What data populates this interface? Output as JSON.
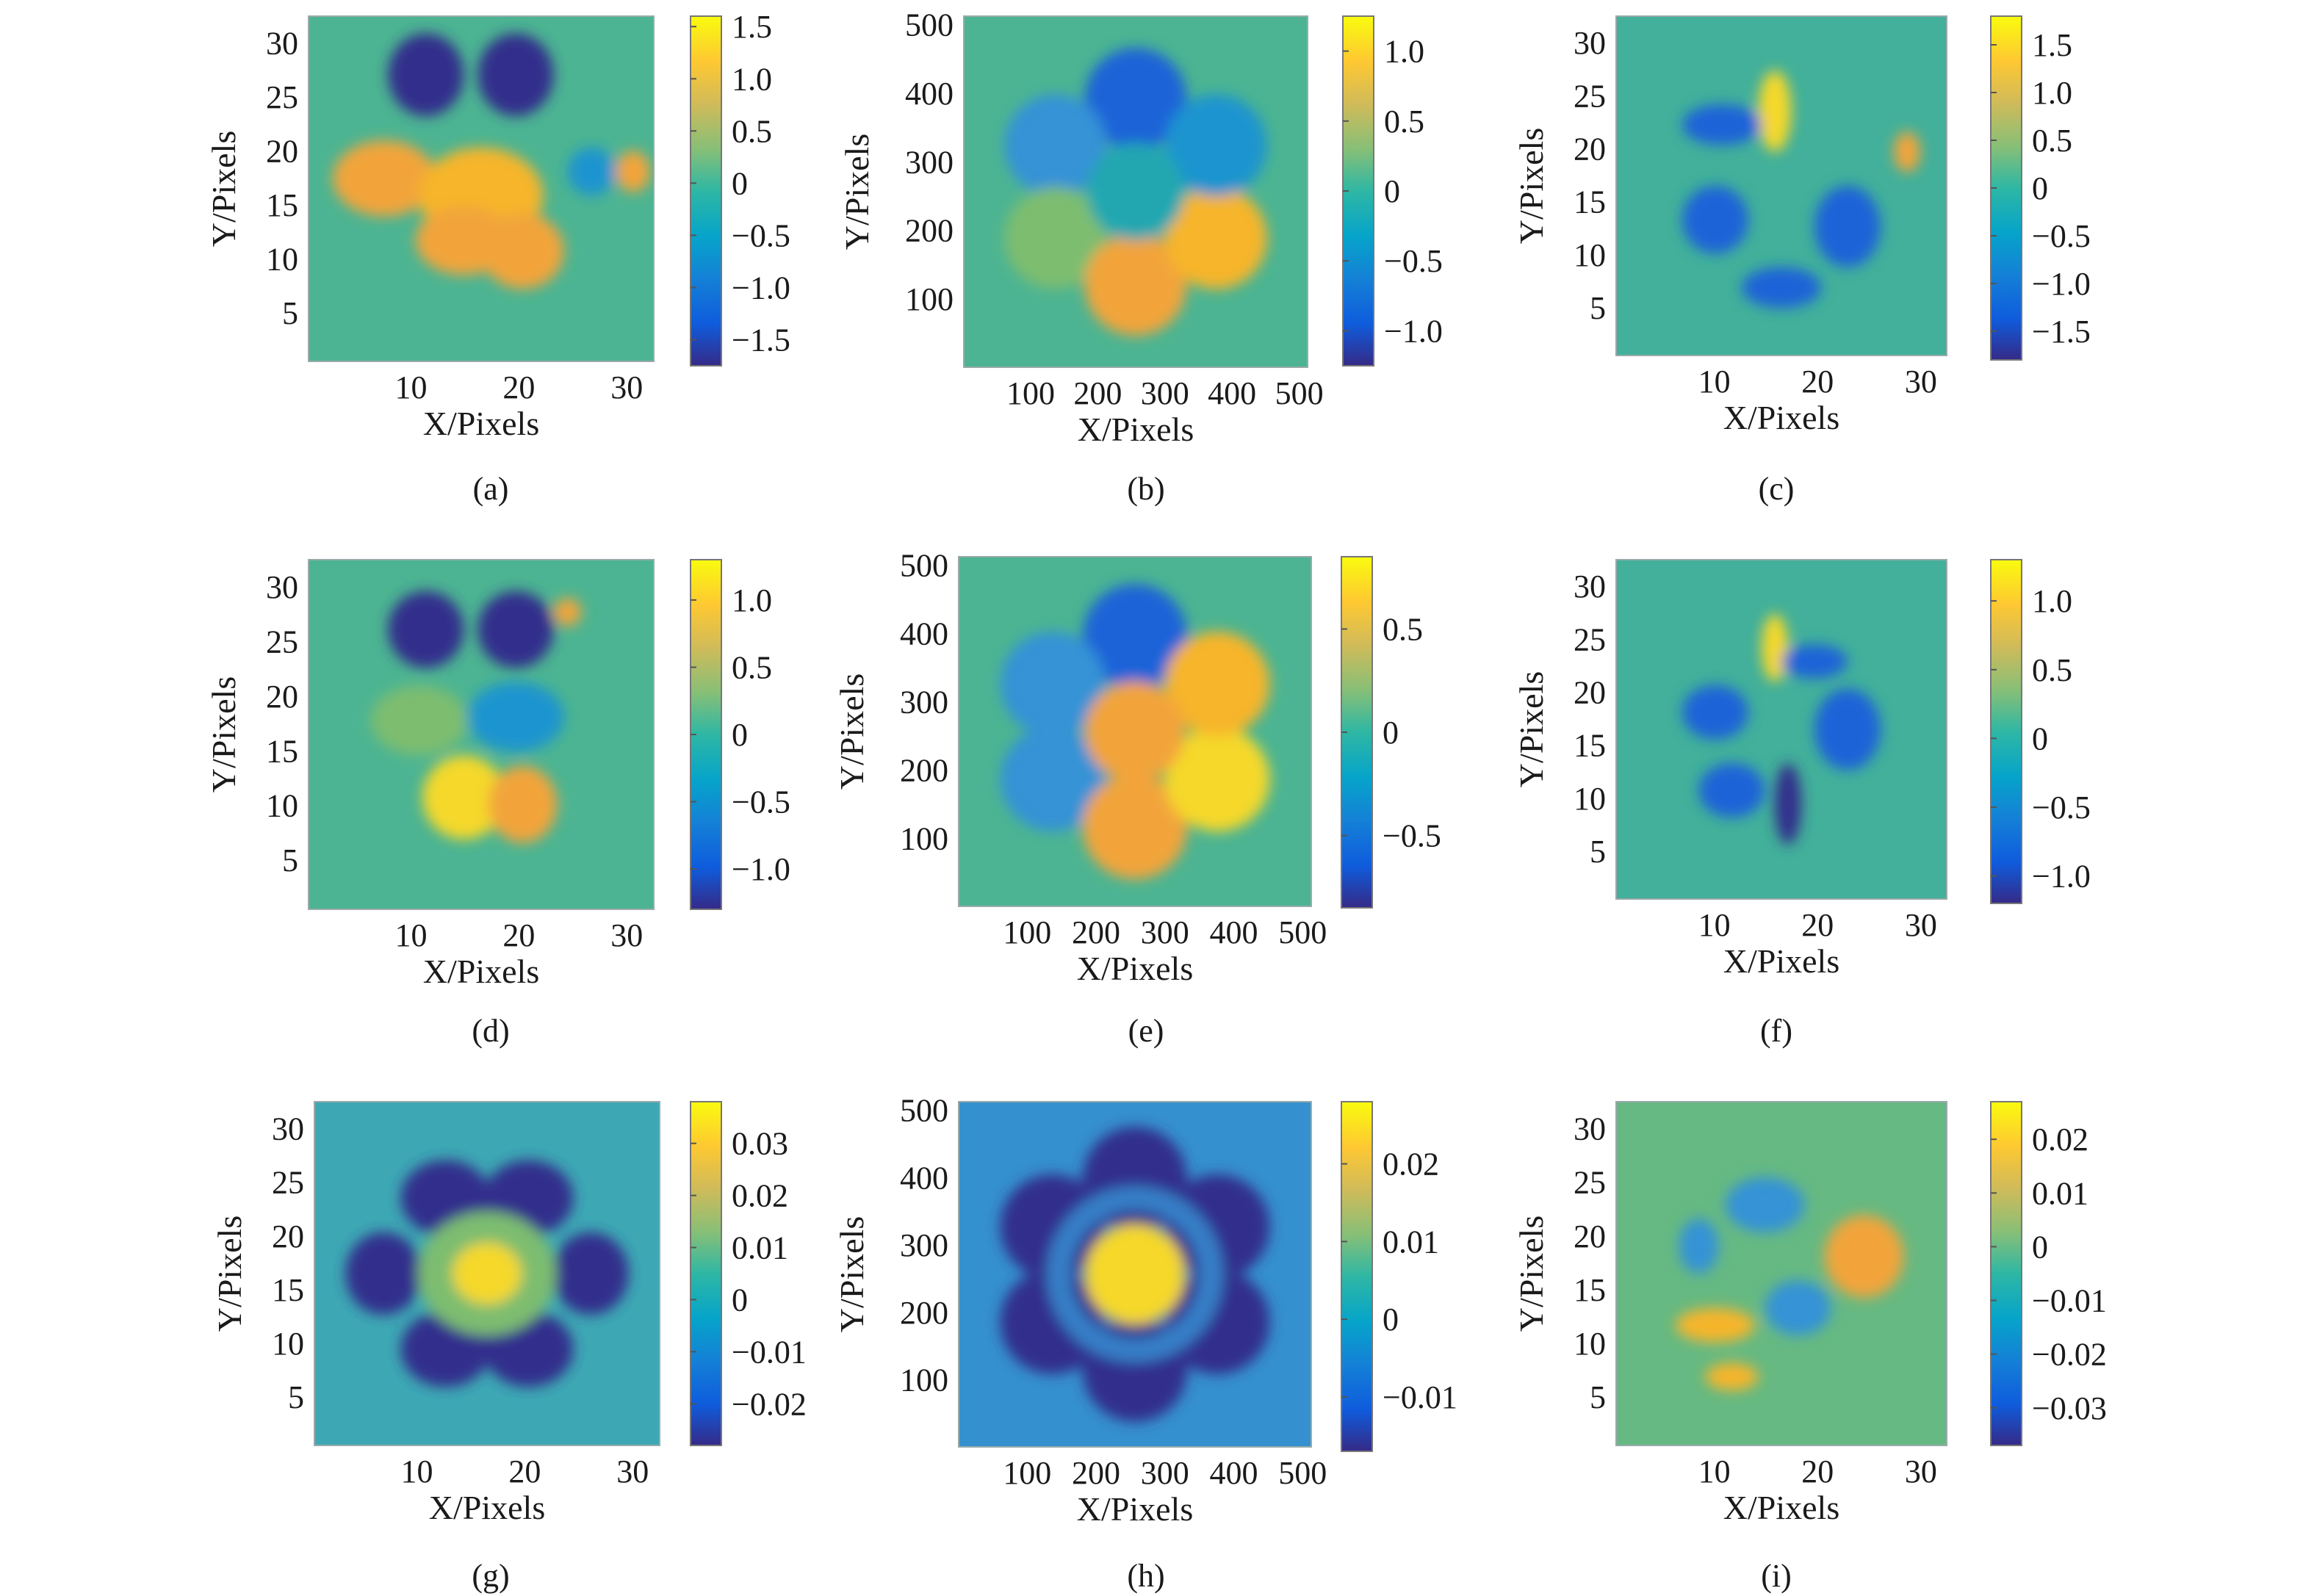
{
  "figure": {
    "panels": [
      {
        "caption": "(a)",
        "image_size": 32,
        "xlabel": "X/Pixels",
        "ylabel": "Y/Pixels",
        "x_ticks": [
          "10",
          "20",
          "30"
        ],
        "y_ticks": [
          "5",
          "10",
          "15",
          "20",
          "25",
          "30"
        ],
        "colorbar": {
          "range": [
            -1.75,
            1.6
          ],
          "ticks": [
            "1.5",
            "1.0",
            "0.5",
            "0",
            "−0.5",
            "−1.0",
            "−1.5"
          ]
        }
      },
      {
        "caption": "(b)",
        "image_size": 512,
        "xlabel": "X/Pixels",
        "ylabel": "Y/Pixels",
        "x_ticks": [
          "100",
          "200",
          "300",
          "400",
          "500"
        ],
        "y_ticks": [
          "100",
          "200",
          "300",
          "400",
          "500"
        ],
        "colorbar": {
          "range": [
            -1.25,
            1.25
          ],
          "ticks": [
            "1.0",
            "0.5",
            "0",
            "−0.5",
            "−1.0"
          ]
        }
      },
      {
        "caption": "(c)",
        "image_size": 32,
        "xlabel": "X/Pixels",
        "ylabel": "Y/Pixels",
        "x_ticks": [
          "10",
          "20",
          "30"
        ],
        "y_ticks": [
          "5",
          "10",
          "15",
          "20",
          "25",
          "30"
        ],
        "colorbar": {
          "range": [
            -1.8,
            1.8
          ],
          "ticks": [
            "1.5",
            "1.0",
            "0.5",
            "0",
            "−0.5",
            "−1.0",
            "−1.5"
          ]
        }
      },
      {
        "caption": "(d)",
        "image_size": 32,
        "xlabel": "X/Pixels",
        "ylabel": "Y/Pixels",
        "x_ticks": [
          "10",
          "20",
          "30"
        ],
        "y_ticks": [
          "5",
          "10",
          "15",
          "20",
          "25",
          "30"
        ],
        "colorbar": {
          "range": [
            -1.3,
            1.3
          ],
          "ticks": [
            "1.0",
            "0.5",
            "0",
            "−0.5",
            "−1.0"
          ]
        }
      },
      {
        "caption": "(e)",
        "image_size": 512,
        "xlabel": "X/Pixels",
        "ylabel": "Y/Pixels",
        "x_ticks": [
          "100",
          "200",
          "300",
          "400",
          "500"
        ],
        "y_ticks": [
          "100",
          "200",
          "300",
          "400",
          "500"
        ],
        "colorbar": {
          "range": [
            -0.85,
            0.85
          ],
          "ticks": [
            "0.5",
            "0",
            "−0.5"
          ]
        }
      },
      {
        "caption": "(f)",
        "image_size": 32,
        "xlabel": "X/Pixels",
        "ylabel": "Y/Pixels",
        "x_ticks": [
          "10",
          "20",
          "30"
        ],
        "y_ticks": [
          "5",
          "10",
          "15",
          "20",
          "25",
          "30"
        ],
        "colorbar": {
          "range": [
            -1.2,
            1.3
          ],
          "ticks": [
            "1.0",
            "0.5",
            "0",
            "−0.5",
            "−1.0"
          ]
        }
      },
      {
        "caption": "(g)",
        "image_size": 32,
        "xlabel": "X/Pixels",
        "ylabel": "Y/Pixels",
        "x_ticks": [
          "10",
          "20",
          "30"
        ],
        "y_ticks": [
          "5",
          "10",
          "15",
          "20",
          "25",
          "30"
        ],
        "colorbar": {
          "range": [
            -0.028,
            0.038
          ],
          "ticks": [
            "0.03",
            "0.02",
            "0.01",
            "0",
            "−0.01",
            "−0.02"
          ]
        }
      },
      {
        "caption": "(h)",
        "image_size": 512,
        "xlabel": "X/Pixels",
        "ylabel": "Y/Pixels",
        "x_ticks": [
          "100",
          "200",
          "300",
          "400",
          "500"
        ],
        "y_ticks": [
          "100",
          "200",
          "300",
          "400",
          "500"
        ],
        "colorbar": {
          "range": [
            -0.017,
            0.028
          ],
          "ticks": [
            "0.02",
            "0.01",
            "0",
            "−0.01"
          ]
        }
      },
      {
        "caption": "(i)",
        "image_size": 32,
        "xlabel": "X/Pixels",
        "ylabel": "Y/Pixels",
        "x_ticks": [
          "10",
          "20",
          "30"
        ],
        "y_ticks": [
          "5",
          "10",
          "15",
          "20",
          "25",
          "30"
        ],
        "colorbar": {
          "range": [
            -0.037,
            0.027
          ],
          "ticks": [
            "0.02",
            "0.01",
            "0",
            "−0.01",
            "−0.02",
            "−0.03"
          ]
        }
      }
    ]
  },
  "chart_data": [
    {
      "type": "heatmap",
      "panel": "(a)",
      "xlabel": "X/Pixels",
      "ylabel": "Y/Pixels",
      "xlim": [
        1,
        32
      ],
      "ylim": [
        1,
        32
      ],
      "x_ticks": [
        10,
        20,
        30
      ],
      "y_ticks": [
        5,
        10,
        15,
        20,
        25,
        30
      ],
      "colorbar_ticks": [
        1.5,
        1.0,
        0.5,
        0,
        -0.5,
        -1.0,
        -1.5
      ],
      "color_range": [
        -1.75,
        1.6
      ],
      "colormap": "parula"
    },
    {
      "type": "heatmap",
      "panel": "(b)",
      "xlabel": "X/Pixels",
      "ylabel": "Y/Pixels",
      "xlim": [
        1,
        512
      ],
      "ylim": [
        1,
        512
      ],
      "x_ticks": [
        100,
        200,
        300,
        400,
        500
      ],
      "y_ticks": [
        100,
        200,
        300,
        400,
        500
      ],
      "colorbar_ticks": [
        1.0,
        0.5,
        0,
        -0.5,
        -1.0
      ],
      "color_range": [
        -1.25,
        1.25
      ],
      "colormap": "parula"
    },
    {
      "type": "heatmap",
      "panel": "(c)",
      "xlabel": "X/Pixels",
      "ylabel": "Y/Pixels",
      "xlim": [
        1,
        32
      ],
      "ylim": [
        1,
        32
      ],
      "x_ticks": [
        10,
        20,
        30
      ],
      "y_ticks": [
        5,
        10,
        15,
        20,
        25,
        30
      ],
      "colorbar_ticks": [
        1.5,
        1.0,
        0.5,
        0,
        -0.5,
        -1.0,
        -1.5
      ],
      "color_range": [
        -1.8,
        1.8
      ],
      "colormap": "parula"
    },
    {
      "type": "heatmap",
      "panel": "(d)",
      "xlabel": "X/Pixels",
      "ylabel": "Y/Pixels",
      "xlim": [
        1,
        32
      ],
      "ylim": [
        1,
        32
      ],
      "x_ticks": [
        10,
        20,
        30
      ],
      "y_ticks": [
        5,
        10,
        15,
        20,
        25,
        30
      ],
      "colorbar_ticks": [
        1.0,
        0.5,
        0,
        -0.5,
        -1.0
      ],
      "color_range": [
        -1.3,
        1.3
      ],
      "colormap": "parula"
    },
    {
      "type": "heatmap",
      "panel": "(e)",
      "xlabel": "X/Pixels",
      "ylabel": "Y/Pixels",
      "xlim": [
        1,
        512
      ],
      "ylim": [
        1,
        512
      ],
      "x_ticks": [
        100,
        200,
        300,
        400,
        500
      ],
      "y_ticks": [
        100,
        200,
        300,
        400,
        500
      ],
      "colorbar_ticks": [
        0.5,
        0,
        -0.5
      ],
      "color_range": [
        -0.85,
        0.85
      ],
      "colormap": "parula"
    },
    {
      "type": "heatmap",
      "panel": "(f)",
      "xlabel": "X/Pixels",
      "ylabel": "Y/Pixels",
      "xlim": [
        1,
        32
      ],
      "ylim": [
        1,
        32
      ],
      "x_ticks": [
        10,
        20,
        30
      ],
      "y_ticks": [
        5,
        10,
        15,
        20,
        25,
        30
      ],
      "colorbar_ticks": [
        1.0,
        0.5,
        0,
        -0.5,
        -1.0
      ],
      "color_range": [
        -1.2,
        1.3
      ],
      "colormap": "parula"
    },
    {
      "type": "heatmap",
      "panel": "(g)",
      "xlabel": "X/Pixels",
      "ylabel": "Y/Pixels",
      "xlim": [
        1,
        32
      ],
      "ylim": [
        1,
        32
      ],
      "x_ticks": [
        10,
        20,
        30
      ],
      "y_ticks": [
        5,
        10,
        15,
        20,
        25,
        30
      ],
      "colorbar_ticks": [
        0.03,
        0.02,
        0.01,
        0,
        -0.01,
        -0.02
      ],
      "color_range": [
        -0.028,
        0.038
      ],
      "colormap": "parula"
    },
    {
      "type": "heatmap",
      "panel": "(h)",
      "xlabel": "X/Pixels",
      "ylabel": "Y/Pixels",
      "xlim": [
        1,
        512
      ],
      "ylim": [
        1,
        512
      ],
      "x_ticks": [
        100,
        200,
        300,
        400,
        500
      ],
      "y_ticks": [
        100,
        200,
        300,
        400,
        500
      ],
      "colorbar_ticks": [
        0.02,
        0.01,
        0,
        -0.01
      ],
      "color_range": [
        -0.017,
        0.028
      ],
      "colormap": "parula"
    },
    {
      "type": "heatmap",
      "panel": "(i)",
      "xlabel": "X/Pixels",
      "ylabel": "Y/Pixels",
      "xlim": [
        1,
        32
      ],
      "ylim": [
        1,
        32
      ],
      "x_ticks": [
        10,
        20,
        30
      ],
      "y_ticks": [
        5,
        10,
        15,
        20,
        25,
        30
      ],
      "colorbar_ticks": [
        0.02,
        0.01,
        0,
        -0.01,
        -0.02,
        -0.03
      ],
      "color_range": [
        -0.037,
        0.027
      ],
      "colormap": "parula"
    }
  ]
}
